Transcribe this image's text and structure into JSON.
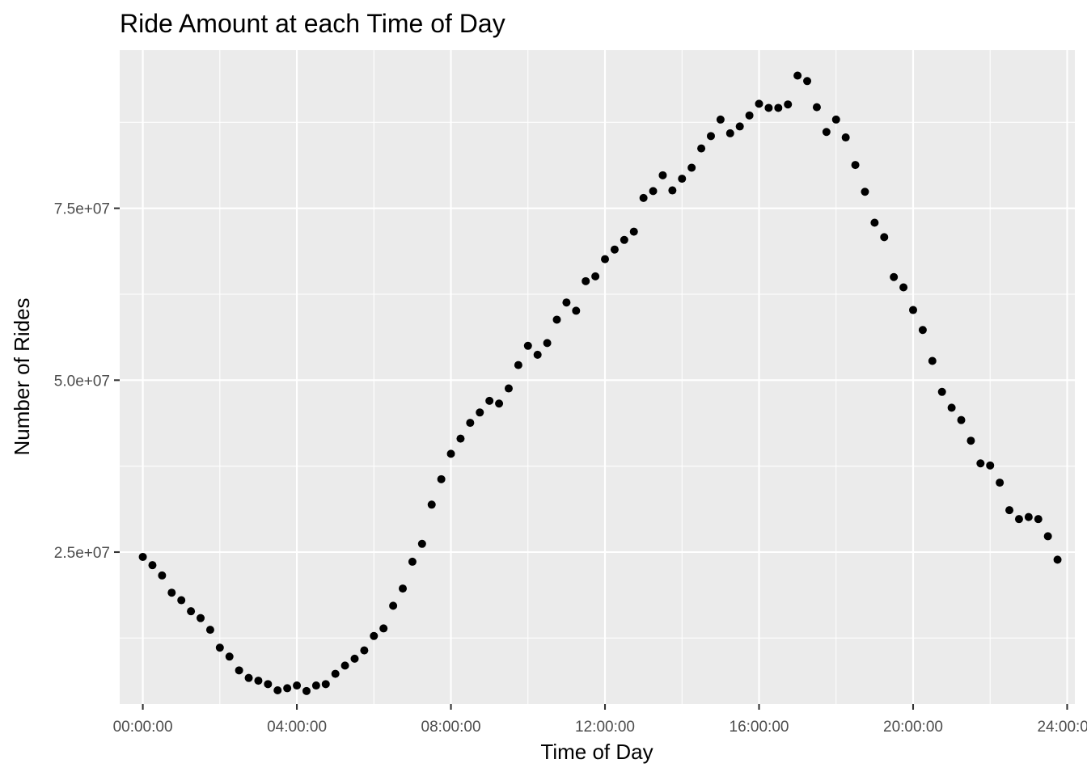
{
  "chart_data": {
    "type": "scatter",
    "title": "Ride Amount at each Time of Day",
    "xlabel": "Time of Day",
    "ylabel": "Number of Rides",
    "x_unit": "time of day (hours)",
    "xlim": [
      -0.6,
      24.2
    ],
    "ylim": [
      2900000,
      98000000
    ],
    "x_ticks": [
      0,
      4,
      8,
      12,
      16,
      20,
      24
    ],
    "x_tick_labels": [
      "00:00:00",
      "04:00:00",
      "08:00:00",
      "12:00:00",
      "16:00:00",
      "20:00:00",
      "24:00:00"
    ],
    "y_ticks": [
      25000000,
      50000000,
      75000000
    ],
    "y_tick_labels": [
      "2.5e+07",
      "5.0e+07",
      "7.5e+07"
    ],
    "grid": true,
    "legend": "none",
    "point_color": "#000000",
    "panel_color": "#ebebeb",
    "points": [
      {
        "x": 0.0,
        "y": 24300000
      },
      {
        "x": 0.25,
        "y": 23100000
      },
      {
        "x": 0.5,
        "y": 21600000
      },
      {
        "x": 0.75,
        "y": 19100000
      },
      {
        "x": 1.0,
        "y": 18000000
      },
      {
        "x": 1.25,
        "y": 16400000
      },
      {
        "x": 1.5,
        "y": 15400000
      },
      {
        "x": 1.75,
        "y": 13700000
      },
      {
        "x": 2.0,
        "y": 11100000
      },
      {
        "x": 2.25,
        "y": 9800000
      },
      {
        "x": 2.5,
        "y": 7800000
      },
      {
        "x": 2.75,
        "y": 6700000
      },
      {
        "x": 3.0,
        "y": 6300000
      },
      {
        "x": 3.25,
        "y": 5800000
      },
      {
        "x": 3.5,
        "y": 4900000
      },
      {
        "x": 3.75,
        "y": 5200000
      },
      {
        "x": 4.0,
        "y": 5600000
      },
      {
        "x": 4.25,
        "y": 4800000
      },
      {
        "x": 4.5,
        "y": 5600000
      },
      {
        "x": 4.75,
        "y": 5800000
      },
      {
        "x": 5.0,
        "y": 7300000
      },
      {
        "x": 5.25,
        "y": 8500000
      },
      {
        "x": 5.5,
        "y": 9500000
      },
      {
        "x": 5.75,
        "y": 10700000
      },
      {
        "x": 6.0,
        "y": 12800000
      },
      {
        "x": 6.25,
        "y": 13900000
      },
      {
        "x": 6.5,
        "y": 17200000
      },
      {
        "x": 6.75,
        "y": 19700000
      },
      {
        "x": 7.0,
        "y": 23600000
      },
      {
        "x": 7.25,
        "y": 26200000
      },
      {
        "x": 7.5,
        "y": 31900000
      },
      {
        "x": 7.75,
        "y": 35600000
      },
      {
        "x": 8.0,
        "y": 39300000
      },
      {
        "x": 8.25,
        "y": 41500000
      },
      {
        "x": 8.5,
        "y": 43800000
      },
      {
        "x": 8.75,
        "y": 45300000
      },
      {
        "x": 9.0,
        "y": 47000000
      },
      {
        "x": 9.25,
        "y": 46600000
      },
      {
        "x": 9.5,
        "y": 48800000
      },
      {
        "x": 9.75,
        "y": 52200000
      },
      {
        "x": 10.0,
        "y": 55000000
      },
      {
        "x": 10.25,
        "y": 53700000
      },
      {
        "x": 10.5,
        "y": 55400000
      },
      {
        "x": 10.75,
        "y": 58800000
      },
      {
        "x": 11.0,
        "y": 61300000
      },
      {
        "x": 11.25,
        "y": 60100000
      },
      {
        "x": 11.5,
        "y": 64400000
      },
      {
        "x": 11.75,
        "y": 65100000
      },
      {
        "x": 12.0,
        "y": 67600000
      },
      {
        "x": 12.25,
        "y": 69000000
      },
      {
        "x": 12.5,
        "y": 70400000
      },
      {
        "x": 12.75,
        "y": 71600000
      },
      {
        "x": 13.0,
        "y": 76500000
      },
      {
        "x": 13.25,
        "y": 77500000
      },
      {
        "x": 13.5,
        "y": 79800000
      },
      {
        "x": 13.75,
        "y": 77600000
      },
      {
        "x": 14.0,
        "y": 79300000
      },
      {
        "x": 14.25,
        "y": 80900000
      },
      {
        "x": 14.5,
        "y": 83700000
      },
      {
        "x": 14.75,
        "y": 85500000
      },
      {
        "x": 15.0,
        "y": 87900000
      },
      {
        "x": 15.25,
        "y": 85900000
      },
      {
        "x": 15.5,
        "y": 86900000
      },
      {
        "x": 15.75,
        "y": 88500000
      },
      {
        "x": 16.0,
        "y": 90200000
      },
      {
        "x": 16.25,
        "y": 89600000
      },
      {
        "x": 16.5,
        "y": 89600000
      },
      {
        "x": 16.75,
        "y": 90100000
      },
      {
        "x": 17.0,
        "y": 94300000
      },
      {
        "x": 17.25,
        "y": 93500000
      },
      {
        "x": 17.5,
        "y": 89700000
      },
      {
        "x": 17.75,
        "y": 86100000
      },
      {
        "x": 18.0,
        "y": 87900000
      },
      {
        "x": 18.25,
        "y": 85300000
      },
      {
        "x": 18.5,
        "y": 81300000
      },
      {
        "x": 18.75,
        "y": 77400000
      },
      {
        "x": 19.0,
        "y": 72900000
      },
      {
        "x": 19.25,
        "y": 70800000
      },
      {
        "x": 19.5,
        "y": 65000000
      },
      {
        "x": 19.75,
        "y": 63500000
      },
      {
        "x": 20.0,
        "y": 60200000
      },
      {
        "x": 20.25,
        "y": 57300000
      },
      {
        "x": 20.5,
        "y": 52800000
      },
      {
        "x": 20.75,
        "y": 48300000
      },
      {
        "x": 21.0,
        "y": 46000000
      },
      {
        "x": 21.25,
        "y": 44200000
      },
      {
        "x": 21.5,
        "y": 41200000
      },
      {
        "x": 21.75,
        "y": 37900000
      },
      {
        "x": 22.0,
        "y": 37600000
      },
      {
        "x": 22.25,
        "y": 35100000
      },
      {
        "x": 22.5,
        "y": 31100000
      },
      {
        "x": 22.75,
        "y": 29800000
      },
      {
        "x": 23.0,
        "y": 30100000
      },
      {
        "x": 23.25,
        "y": 29800000
      },
      {
        "x": 23.5,
        "y": 27300000
      },
      {
        "x": 23.75,
        "y": 23900000
      }
    ]
  }
}
